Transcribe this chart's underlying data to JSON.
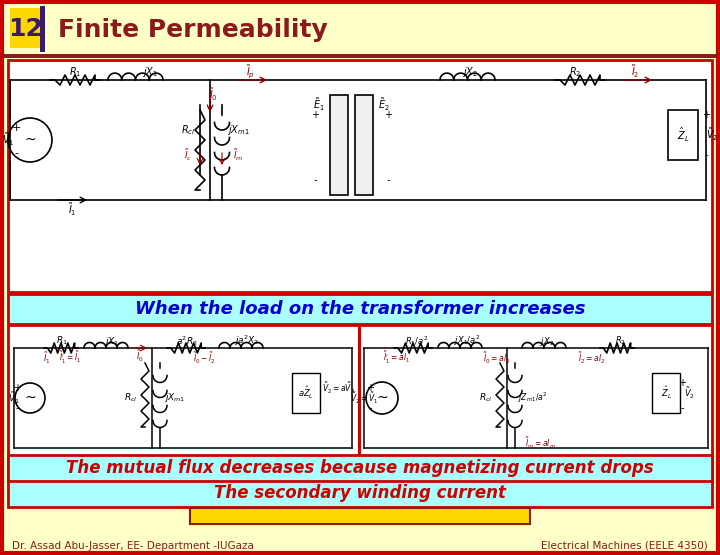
{
  "bg_color": "#FFFFC8",
  "title_num": "12",
  "title_text": "Finite Permeability",
  "title_color": "#8B1A1A",
  "title_bg": "#FFD700",
  "header_bar_color": "#8B1A1A",
  "slide_border_color": "#CC0000",
  "top_box_bg": "#FFFFFF",
  "top_box_border": "#CC0000",
  "mid_text": "When the load on the transformer increases",
  "mid_text_color": "#0000CD",
  "mid_bg": "#AAFFFF",
  "mid_border": "#CC0000",
  "bot_box_bg": "#FFFFFF",
  "bot_box_border": "#CC0000",
  "bottom_text": "The mutual flux decreases because magnetizing current drops",
  "bottom_text_color": "#CC0000",
  "bottom_bg": "#AAFFFF",
  "footer_left": "Dr. Assad Abu-Jasser, EE- Department -IUGaza",
  "footer_right": "Electrical Machines (EELE 4350)",
  "footer_color": "#8B1A1A",
  "inner_box_color": "#FFD700",
  "inner_box_border": "#8B1A1A",
  "secondary_text": "The secondary winding current",
  "secondary_text_color": "#CC0000",
  "secondary_bg": "#AAFFFF",
  "dark_bar_color": "#3A1A6A"
}
